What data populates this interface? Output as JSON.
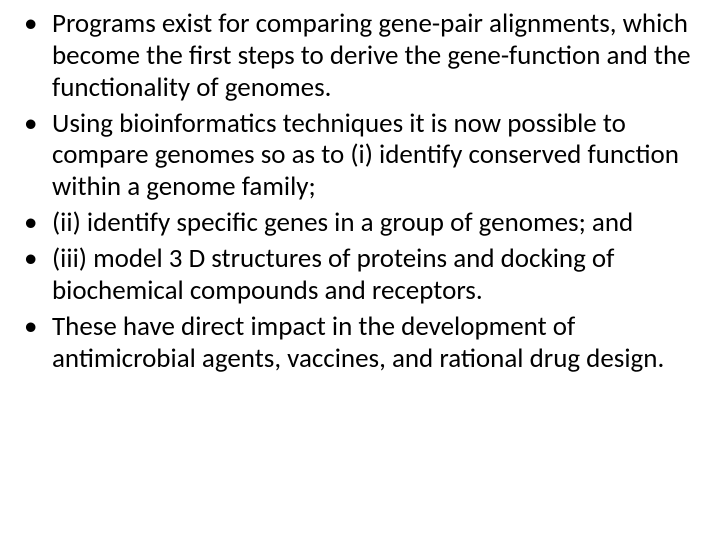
{
  "slide": {
    "background_color": "#ffffff",
    "text_color": "#000000",
    "font_family": "Calibri",
    "font_size_pt": 20,
    "bullets": [
      "Programs exist for comparing gene-pair alignments, which become the first steps to derive the gene-function and the functionality of genomes.",
      "Using bioinformatics techniques it is now possible to compare genomes so as to (i) identify conserved function within a genome family;",
      "(ii) identify specific genes in a group of genomes; and",
      "(iii) model 3 D structures of proteins and docking of biochemical compounds and receptors.",
      "These have direct impact in the development of antimicrobial agents, vaccines, and rational drug design."
    ]
  }
}
